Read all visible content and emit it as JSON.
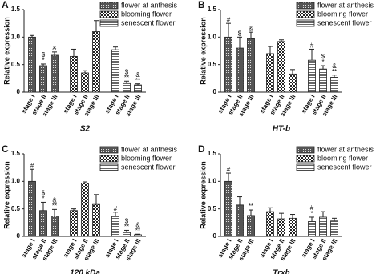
{
  "chart_data": [
    {
      "type": "bar",
      "panel": "A",
      "ylabel": "Relative expression",
      "xlabel": "S2",
      "categories": [
        "stage I",
        "stage II",
        "stage III"
      ],
      "ylim": [
        0,
        1.5
      ],
      "yticks": [
        0,
        0.5,
        {
          "value": 1,
          "label": "1.0"
        },
        1.5
      ],
      "series": [
        {
          "name": "flower at anthesis",
          "pattern": "dense",
          "color": "#222",
          "values": [
            1.0,
            0.48,
            0.67
          ],
          "errors": [
            0.03,
            0.03,
            0.06
          ],
          "annotations": [
            [],
            [
              "$",
              "*"
            ],
            [
              "&"
            ]
          ]
        },
        {
          "name": "blooming flower",
          "pattern": "checker",
          "color": "#222",
          "values": [
            0.65,
            0.35,
            1.1
          ],
          "errors": [
            0.13,
            0.04,
            0.2
          ],
          "annotations": [
            [],
            [],
            []
          ]
        },
        {
          "name": "senescent flower",
          "pattern": "hlines",
          "color": "#222",
          "values": [
            0.77,
            0.17,
            0.13
          ],
          "errors": [
            0.05,
            0.03,
            0.02
          ],
          "annotations": [
            [],
            [
              "$",
              "**"
            ],
            [
              "&",
              "**"
            ]
          ]
        }
      ]
    },
    {
      "type": "bar",
      "panel": "B",
      "ylabel": "Relative expression",
      "xlabel": "HT-b",
      "categories": [
        "stage I",
        "stage II",
        "stage III"
      ],
      "ylim": [
        0,
        1.5
      ],
      "yticks": [
        0,
        0.5,
        {
          "value": 1,
          "label": "1.0"
        },
        1.5
      ],
      "series": [
        {
          "name": "flower at anthesis",
          "pattern": "dense",
          "color": "#222",
          "values": [
            1.0,
            0.8,
            0.97
          ],
          "errors": [
            0.25,
            0.2,
            0.12
          ],
          "annotations": [
            [
              "#"
            ],
            [
              "$"
            ],
            [
              "&"
            ]
          ]
        },
        {
          "name": "blooming flower",
          "pattern": "checker",
          "color": "#222",
          "values": [
            0.7,
            0.92,
            0.33
          ],
          "errors": [
            0.13,
            0.03,
            0.08
          ],
          "annotations": [
            [],
            [],
            []
          ]
        },
        {
          "name": "senescent flower",
          "pattern": "hlines",
          "color": "#222",
          "values": [
            0.58,
            0.42,
            0.27
          ],
          "errors": [
            0.2,
            0.06,
            0.04
          ],
          "annotations": [
            [
              "#"
            ],
            [
              "$",
              "*"
            ],
            [
              "&",
              "**"
            ]
          ]
        }
      ]
    },
    {
      "type": "bar",
      "panel": "C",
      "ylabel": "Relative expression",
      "xlabel": "120 kDa",
      "categories": [
        "stage I",
        "stage II",
        "stage III"
      ],
      "ylim": [
        0,
        1.5
      ],
      "yticks": [
        0,
        0.5,
        {
          "value": 1,
          "label": "1.0"
        },
        1.5
      ],
      "series": [
        {
          "name": "flower at anthesis",
          "pattern": "dense",
          "color": "#222",
          "values": [
            1.0,
            0.47,
            0.37
          ],
          "errors": [
            0.22,
            0.15,
            0.12
          ],
          "annotations": [
            [
              "#"
            ],
            [
              "$",
              "*"
            ],
            [
              "&",
              "**"
            ]
          ]
        },
        {
          "name": "blooming flower",
          "pattern": "checker",
          "color": "#222",
          "values": [
            0.47,
            0.97,
            0.58
          ],
          "errors": [
            0.03,
            0.02,
            0.18
          ],
          "annotations": [
            [],
            [],
            []
          ]
        },
        {
          "name": "senescent flower",
          "pattern": "hlines",
          "color": "#222",
          "values": [
            0.37,
            0.08,
            0.03
          ],
          "errors": [
            0.07,
            0.03,
            0.01
          ],
          "annotations": [
            [
              "#"
            ],
            [
              "$",
              "**"
            ],
            [
              "&",
              "**"
            ]
          ]
        }
      ]
    },
    {
      "type": "bar",
      "panel": "D",
      "ylabel": "Relative expression",
      "xlabel": "Trxh",
      "categories": [
        "stage I",
        "stage II",
        "stage III"
      ],
      "ylim": [
        0,
        1.5
      ],
      "yticks": [
        0,
        0.5,
        {
          "value": 1,
          "label": "1.0"
        },
        1.5
      ],
      "series": [
        {
          "name": "flower at anthesis",
          "pattern": "dense",
          "color": "#222",
          "values": [
            1.0,
            0.57,
            0.38
          ],
          "errors": [
            0.15,
            0.15,
            0.1
          ],
          "annotations": [
            [
              "#"
            ],
            [],
            [
              "**"
            ]
          ]
        },
        {
          "name": "blooming flower",
          "pattern": "checker",
          "color": "#222",
          "values": [
            0.45,
            0.32,
            0.33
          ],
          "errors": [
            0.07,
            0.1,
            0.07
          ],
          "annotations": [
            [],
            [],
            []
          ]
        },
        {
          "name": "senescent flower",
          "pattern": "hlines",
          "color": "#222",
          "values": [
            0.27,
            0.35,
            0.28
          ],
          "errors": [
            0.08,
            0.1,
            0.05
          ],
          "annotations": [
            [
              "#",
              "*"
            ],
            [],
            []
          ]
        }
      ]
    }
  ]
}
